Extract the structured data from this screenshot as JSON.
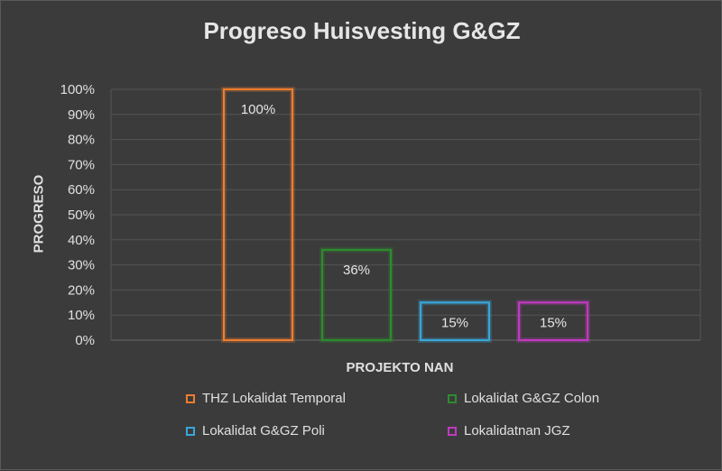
{
  "chart_data": {
    "type": "bar",
    "title": "Progreso Huisvesting G&GZ",
    "xlabel": "PROJEKTO NAN",
    "ylabel": "PROGRESO",
    "ylim": [
      0,
      100
    ],
    "y_ticks": [
      "0%",
      "10%",
      "20%",
      "30%",
      "40%",
      "50%",
      "60%",
      "70%",
      "80%",
      "90%",
      "100%"
    ],
    "grid": true,
    "legend_position": "bottom",
    "series": [
      {
        "name": "THZ Lokalidat Temporal",
        "value": 100,
        "label": "100%",
        "color": "#ed7d31"
      },
      {
        "name": "Lokalidat G&GZ Colon",
        "value": 36,
        "label": "36%",
        "color": "#2e8b2e"
      },
      {
        "name": "Lokalidat G&GZ Poli",
        "value": 15,
        "label": "15%",
        "color": "#3aa6d8"
      },
      {
        "name": "Lokalidatnan JGZ",
        "value": 15,
        "label": "15%",
        "color": "#c03ac0"
      }
    ]
  }
}
